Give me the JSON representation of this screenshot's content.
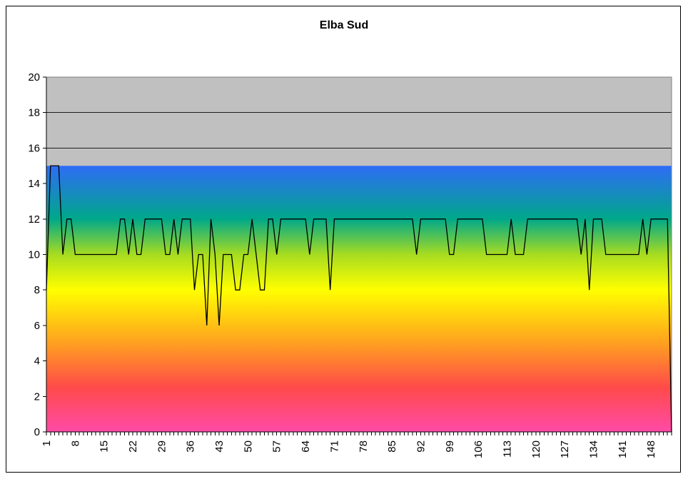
{
  "chart_data": {
    "type": "line",
    "title": "Elba Sud",
    "xlabel": "",
    "ylabel": "",
    "ylim": [
      0,
      20
    ],
    "xlim": [
      1,
      150
    ],
    "yticks": [
      0,
      2,
      4,
      6,
      8,
      10,
      12,
      14,
      16,
      18,
      20
    ],
    "xticks": [
      1,
      8,
      15,
      22,
      29,
      36,
      43,
      50,
      57,
      64,
      71,
      78,
      85,
      92,
      99,
      106,
      113,
      120,
      127,
      134,
      141,
      148
    ],
    "grid": true,
    "legend": "none",
    "background_bands": [
      {
        "from": 15,
        "to": 20,
        "color": "#c0c0c0"
      },
      {
        "from": 0,
        "to": 15,
        "color": "gradient"
      }
    ],
    "gradient_stops": [
      {
        "value": 15,
        "color": "#2e6cf6"
      },
      {
        "value": 12,
        "color": "#00a88a"
      },
      {
        "value": 10,
        "color": "#a7dc20"
      },
      {
        "value": 8,
        "color": "#ffff00"
      },
      {
        "value": 5,
        "color": "#ffa020"
      },
      {
        "value": 2.5,
        "color": "#ff4a4a"
      },
      {
        "value": 0,
        "color": "#ff4aa8"
      }
    ],
    "line_color": "#000000",
    "series": [
      {
        "values": [
          8,
          15,
          15,
          15,
          10,
          12,
          12,
          10,
          10,
          10,
          10,
          10,
          10,
          10,
          10,
          10,
          10,
          10,
          12,
          12,
          10,
          12,
          10,
          10,
          12,
          12,
          12,
          12,
          12,
          10,
          10,
          12,
          10,
          12,
          12,
          12,
          8,
          10,
          10,
          6,
          12,
          10,
          6,
          10,
          10,
          10,
          8,
          8,
          10,
          10,
          12,
          10,
          8,
          8,
          12,
          12,
          10,
          12,
          12,
          12,
          12,
          12,
          12,
          12,
          10,
          12,
          12,
          12,
          12,
          8,
          12,
          12,
          12,
          12,
          12,
          12,
          12,
          12,
          12,
          12,
          12,
          12,
          12,
          12,
          12,
          12,
          12,
          12,
          12,
          12,
          10,
          12,
          12,
          12,
          12,
          12,
          12,
          12,
          10,
          10,
          12,
          12,
          12,
          12,
          12,
          12,
          12,
          10,
          10,
          10,
          10,
          10,
          10,
          12,
          10,
          10,
          10,
          12,
          12,
          12,
          12,
          12,
          12,
          12,
          12,
          12,
          12,
          12,
          12,
          12,
          10,
          12,
          8,
          12,
          12,
          12,
          10,
          10,
          10,
          10,
          10,
          10,
          10,
          10,
          10,
          12,
          10,
          12,
          12,
          12,
          12,
          12,
          0
        ]
      }
    ]
  }
}
